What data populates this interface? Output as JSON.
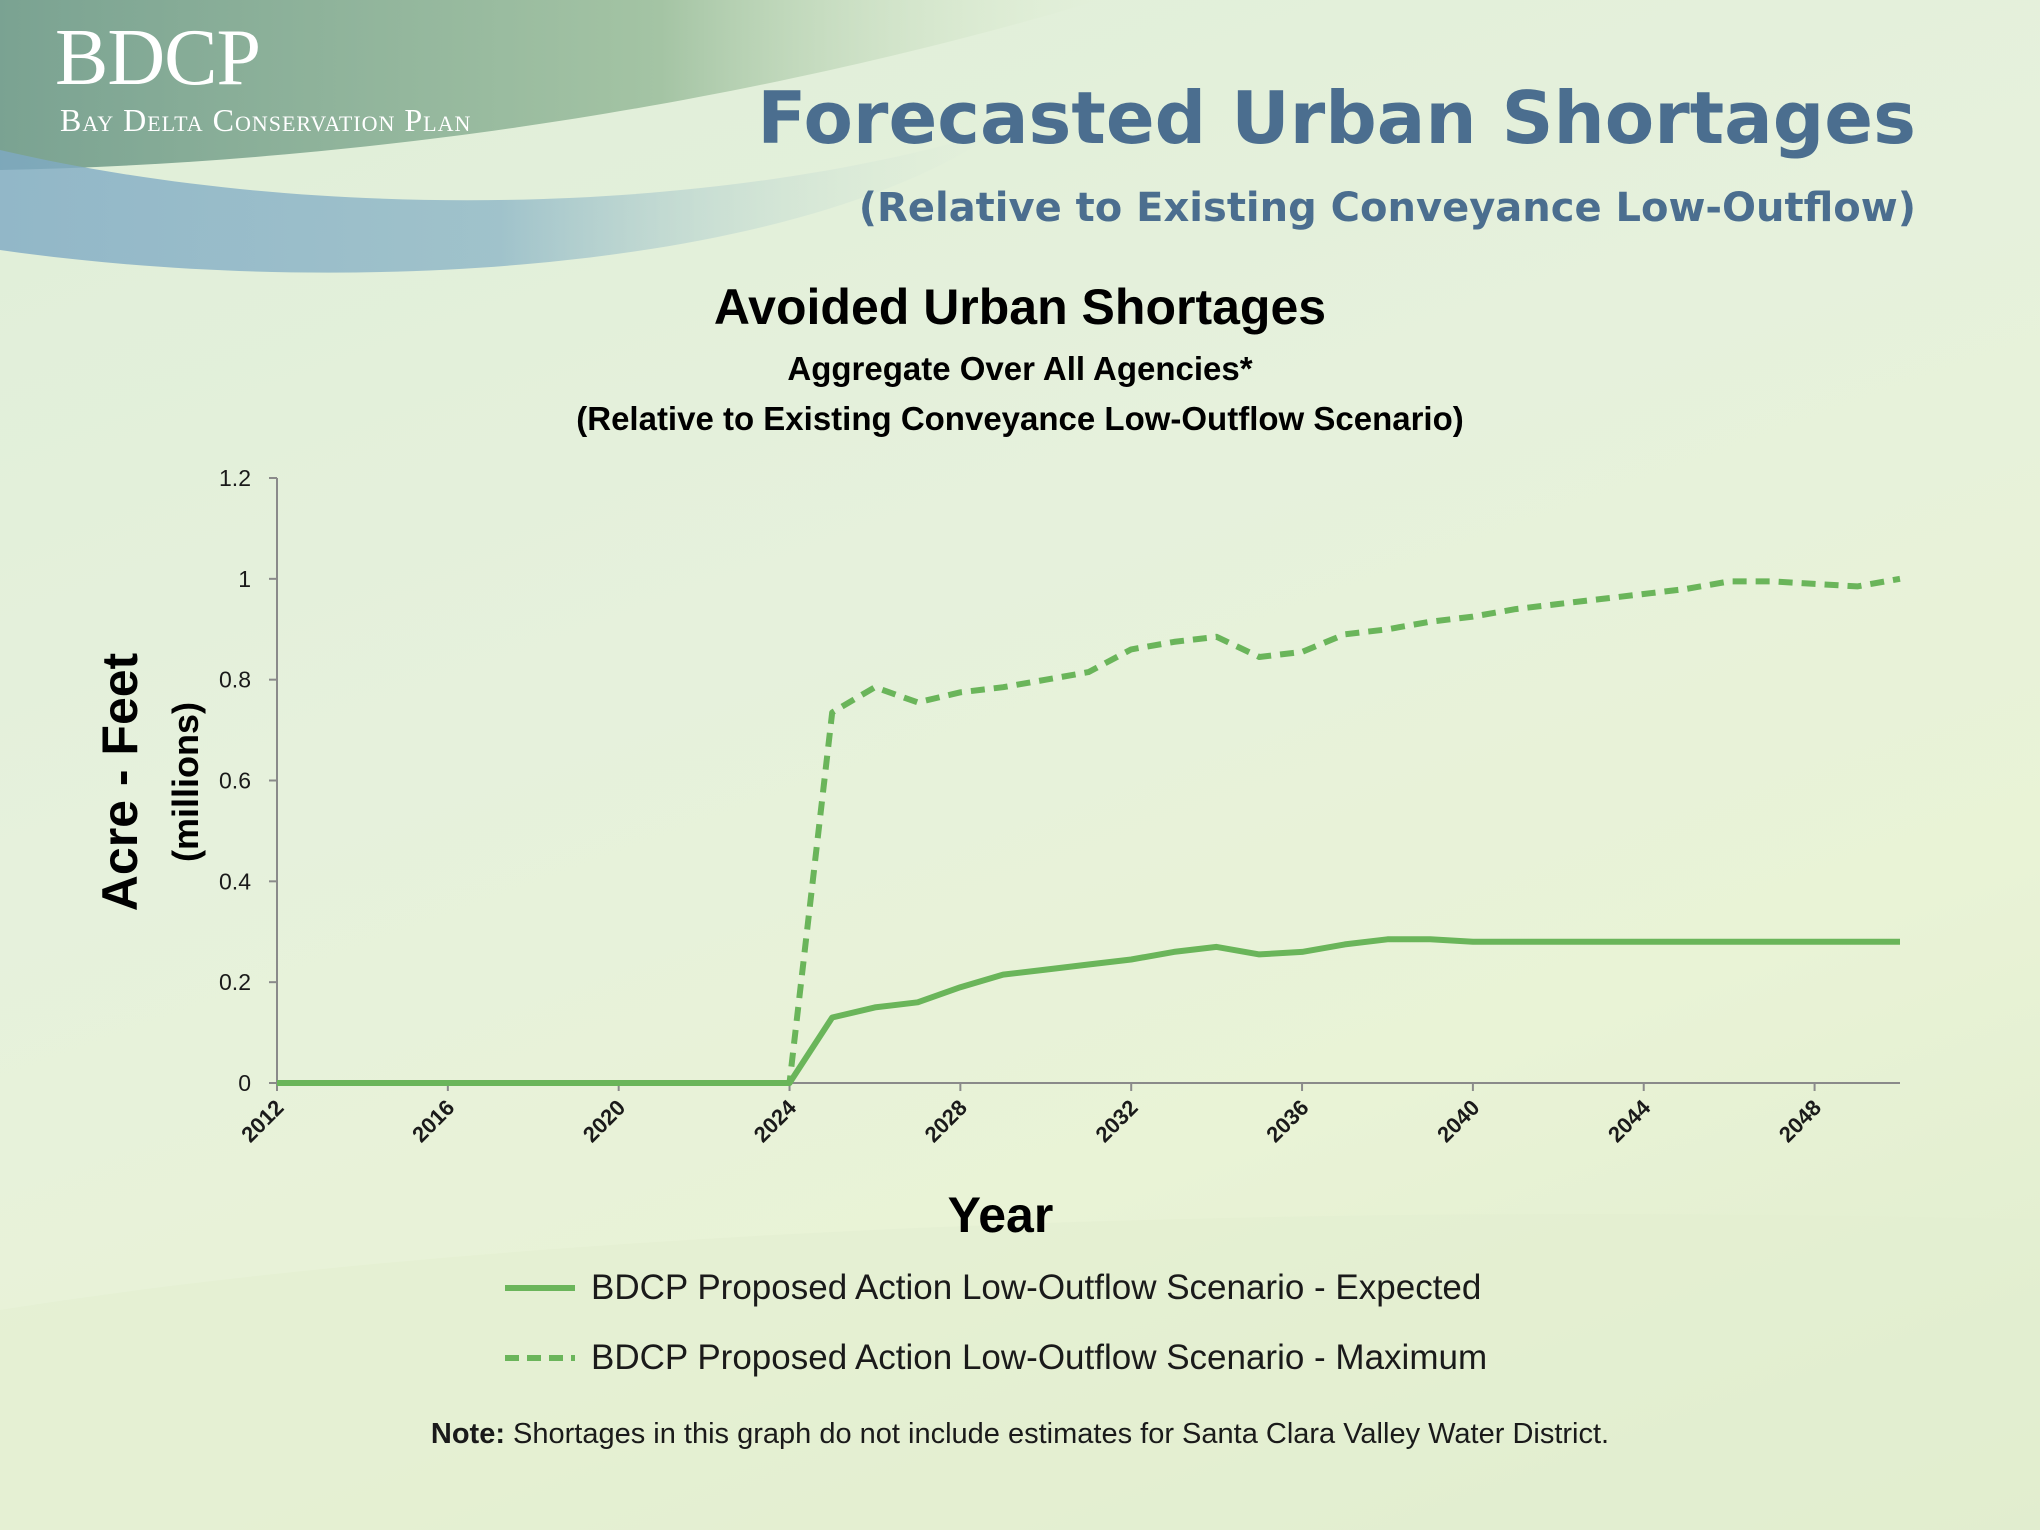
{
  "logo": {
    "main": "BDCP",
    "sub": "Bay Delta Conservation Plan"
  },
  "slide": {
    "title": "Forecasted Urban Shortages",
    "subtitle": "(Relative to Existing Conveyance Low-Outflow)"
  },
  "note": {
    "label": "Note:",
    "text": "Shortages in this graph do not include estimates for Santa Clara Valley Water District."
  },
  "chart_data": {
    "type": "line",
    "title": "Avoided Urban Shortages",
    "subtitle_lines": [
      "Aggregate Over All Agencies*",
      "(Relative to Existing Conveyance Low-Outflow Scenario)"
    ],
    "xlabel": "Year",
    "ylabel": "Acre - Feet",
    "ylabel_unit": "(millions)",
    "xlim": [
      2012,
      2050
    ],
    "ylim": [
      0,
      1.2
    ],
    "x_ticks": [
      "2012",
      "2016",
      "2020",
      "2024",
      "2028",
      "2032",
      "2036",
      "2040",
      "2044",
      "2048"
    ],
    "y_ticks": [
      "0",
      "0.2",
      "0.4",
      "0.6",
      "0.8",
      "1",
      "1.2"
    ],
    "grid": false,
    "legend_position": "bottom",
    "x": [
      2012,
      2013,
      2014,
      2015,
      2016,
      2017,
      2018,
      2019,
      2020,
      2021,
      2022,
      2023,
      2024,
      2025,
      2026,
      2027,
      2028,
      2029,
      2030,
      2031,
      2032,
      2033,
      2034,
      2035,
      2036,
      2037,
      2038,
      2039,
      2040,
      2041,
      2042,
      2043,
      2044,
      2045,
      2046,
      2047,
      2048,
      2049,
      2050
    ],
    "series": [
      {
        "name": "BDCP Proposed Action Low-Outflow Scenario - Expected",
        "style": "solid",
        "color": "#6ab55a",
        "values": [
          0,
          0,
          0,
          0,
          0,
          0,
          0,
          0,
          0,
          0,
          0,
          0,
          0,
          0.13,
          0.15,
          0.16,
          0.19,
          0.215,
          0.225,
          0.235,
          0.245,
          0.26,
          0.27,
          0.255,
          0.26,
          0.275,
          0.285,
          0.285,
          0.28,
          0.28,
          0.28,
          0.28,
          0.28,
          0.28,
          0.28,
          0.28,
          0.28,
          0.28,
          0.28
        ]
      },
      {
        "name": "BDCP Proposed Action Low-Outflow Scenario - Maximum",
        "style": "dashed",
        "color": "#6ab55a",
        "values": [
          0,
          0,
          0,
          0,
          0,
          0,
          0,
          0,
          0,
          0,
          0,
          0,
          0,
          0.735,
          0.785,
          0.755,
          0.775,
          0.785,
          0.8,
          0.815,
          0.86,
          0.875,
          0.885,
          0.845,
          0.855,
          0.89,
          0.9,
          0.915,
          0.925,
          0.94,
          0.95,
          0.96,
          0.97,
          0.98,
          0.995,
          0.995,
          0.99,
          0.985,
          1.0
        ]
      }
    ]
  }
}
